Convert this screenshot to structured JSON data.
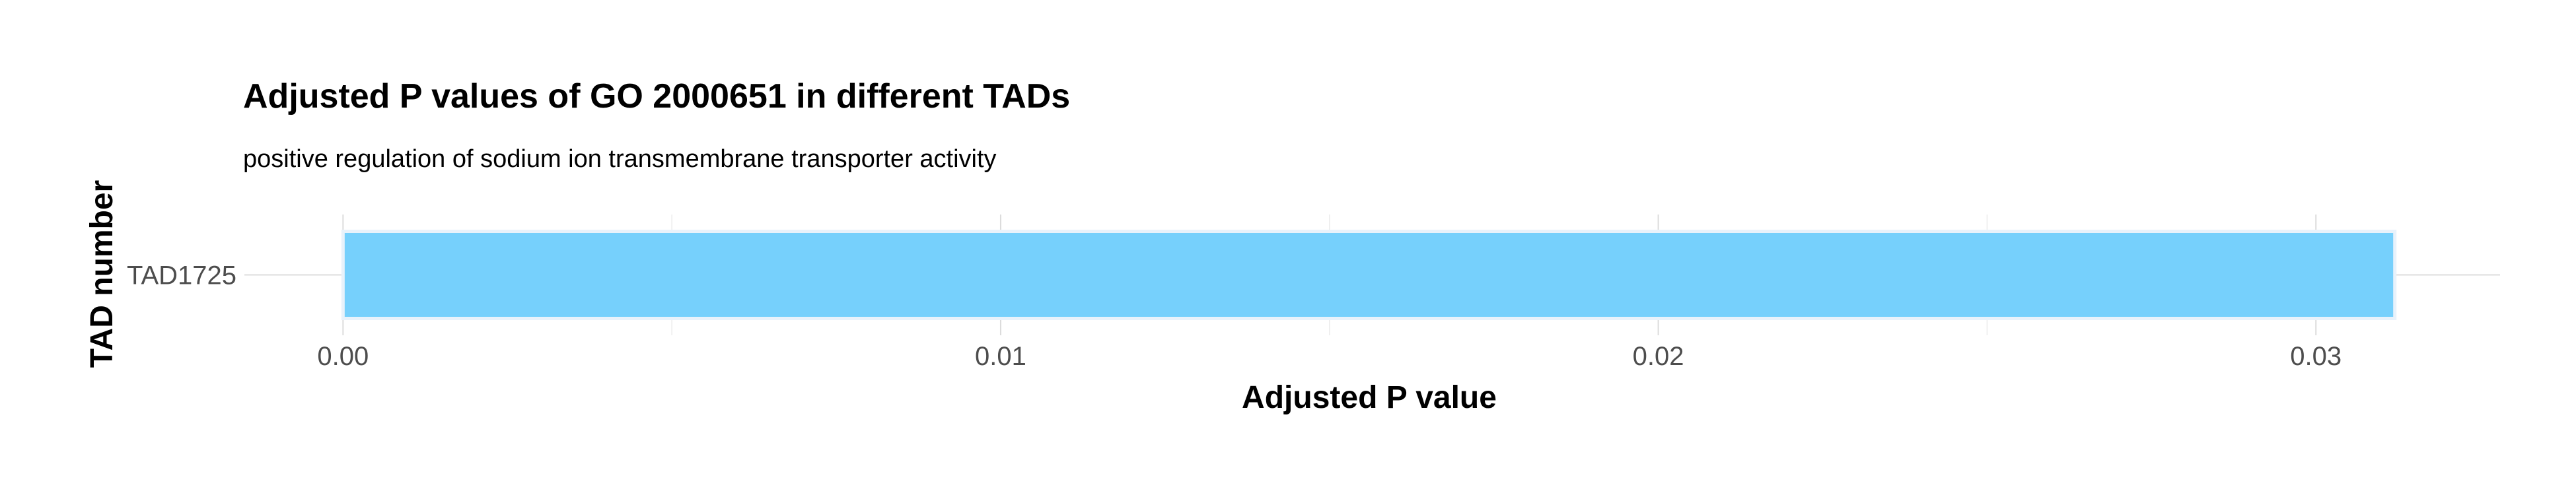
{
  "chart_data": {
    "type": "bar",
    "orientation": "horizontal",
    "title": "Adjusted P values of GO 2000651 in different TADs",
    "subtitle": "positive regulation of sodium ion transmembrane transporter activity",
    "xlabel": "Adjusted P value",
    "ylabel": "TAD number",
    "categories": [
      "TAD1725"
    ],
    "values": [
      0.0312
    ],
    "xlim": [
      -0.0015,
      0.0328
    ],
    "xticks": [
      0.0,
      0.01,
      0.02,
      0.03
    ],
    "xtick_labels": [
      "0.00",
      "0.01",
      "0.02",
      "0.03"
    ],
    "grid": true,
    "legend": "none",
    "colors": {
      "bar_fill": "#76d0fc",
      "bar_outline": "#e8f2fb"
    }
  }
}
